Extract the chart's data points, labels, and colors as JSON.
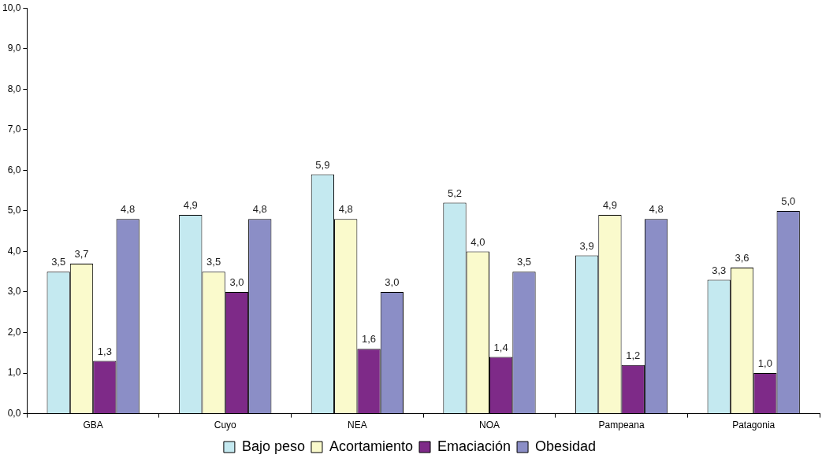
{
  "chart_data": {
    "type": "bar",
    "categories": [
      "GBA",
      "Cuyo",
      "NEA",
      "NOA",
      "Pampeana",
      "Patagonia"
    ],
    "series": [
      {
        "name": "Bajo peso",
        "color": "#c4e9f0",
        "values": [
          3.5,
          4.9,
          5.9,
          5.2,
          3.9,
          3.3
        ],
        "value_labels": [
          "3,5",
          "4,9",
          "5,9",
          "5,2",
          "3,9",
          "3,3"
        ]
      },
      {
        "name": "Acortamiento",
        "color": "#fafacc",
        "values": [
          3.7,
          3.5,
          4.8,
          4.0,
          4.9,
          3.6
        ],
        "value_labels": [
          "3,7",
          "3,5",
          "4,8",
          "4,0",
          "4,9",
          "3,6"
        ]
      },
      {
        "name": "Emaciación",
        "color": "#7e2a88",
        "values": [
          1.3,
          3.0,
          1.6,
          1.4,
          1.2,
          1.0
        ],
        "value_labels": [
          "1,3",
          "3,0",
          "1,6",
          "1,4",
          "1,2",
          "1,0"
        ]
      },
      {
        "name": "Obesidad",
        "color": "#8b8ec6",
        "values": [
          4.8,
          4.8,
          3.0,
          3.5,
          4.8,
          5.0
        ],
        "value_labels": [
          "4,8",
          "4,8",
          "3,0",
          "3,5",
          "4,8",
          "5,0"
        ]
      }
    ],
    "ylim": [
      0,
      10
    ],
    "yticks": [
      {
        "value": 0,
        "label": "0,0"
      },
      {
        "value": 1,
        "label": "1,0"
      },
      {
        "value": 2,
        "label": "2,0"
      },
      {
        "value": 3,
        "label": "3,0"
      },
      {
        "value": 4,
        "label": "4,0"
      },
      {
        "value": 5,
        "label": "5,0"
      },
      {
        "value": 6,
        "label": "6,0"
      },
      {
        "value": 7,
        "label": "7,0"
      },
      {
        "value": 8,
        "label": "8,0"
      },
      {
        "value": 9,
        "label": "9,0"
      },
      {
        "value": 10,
        "label": "10,0"
      }
    ],
    "grid": false,
    "legend": "bottom"
  }
}
